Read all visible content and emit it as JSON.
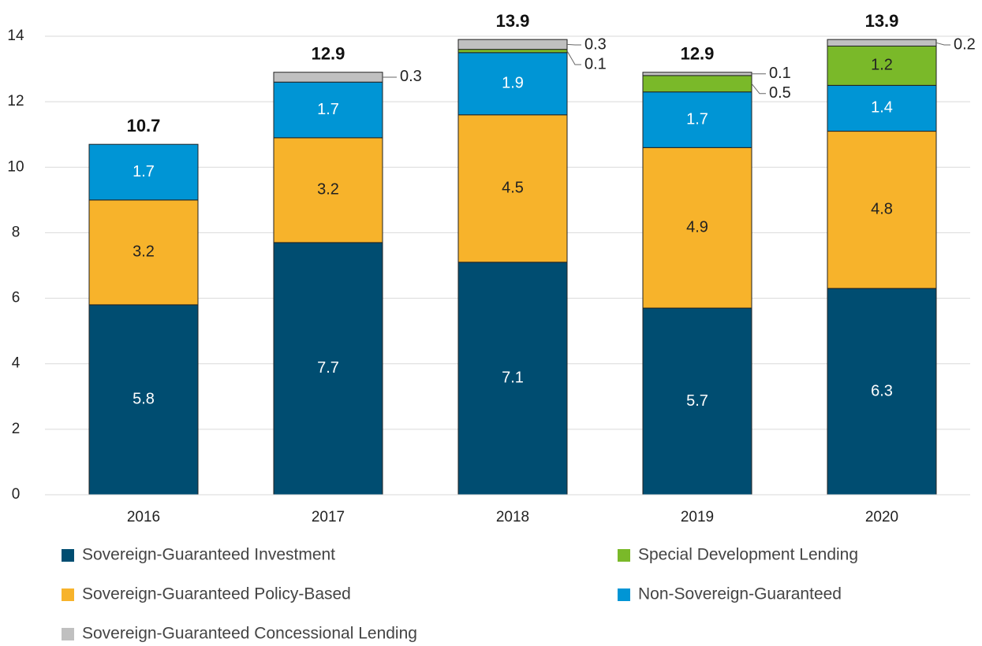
{
  "chart_data": {
    "type": "stacked_bar",
    "categories": [
      "2016",
      "2017",
      "2018",
      "2019",
      "2020"
    ],
    "series": [
      {
        "name": "Sovereign-Guaranteed Investment",
        "color": "#004d71",
        "values": [
          5.8,
          7.7,
          7.1,
          5.7,
          6.3
        ]
      },
      {
        "name": "Sovereign-Guaranteed Policy-Based",
        "color": "#f7b32b",
        "values": [
          3.2,
          3.2,
          4.5,
          4.9,
          4.8
        ]
      },
      {
        "name": "Non-Sovereign-Guaranteed",
        "color": "#0095d5",
        "values": [
          1.7,
          1.7,
          1.9,
          1.7,
          1.4
        ]
      },
      {
        "name": "Special Development Lending",
        "color": "#7ab929",
        "values": [
          null,
          null,
          0.1,
          0.5,
          1.2
        ]
      },
      {
        "name": "Sovereign-Guaranteed Concessional Lending",
        "color": "#c0c0c0",
        "values": [
          null,
          0.3,
          0.3,
          0.1,
          0.2
        ]
      }
    ],
    "totals": [
      10.7,
      12.9,
      13.9,
      12.9,
      13.9
    ],
    "ylim": [
      0,
      14
    ],
    "yticks": [
      0,
      2,
      4,
      6,
      8,
      10,
      12,
      14
    ],
    "grid": true
  }
}
